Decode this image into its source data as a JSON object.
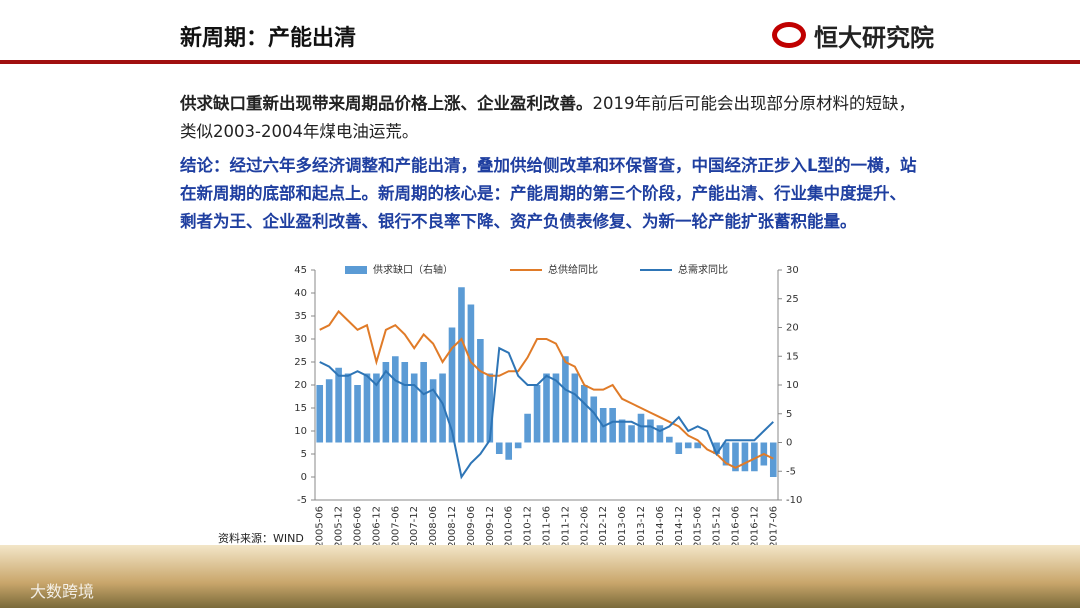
{
  "header": {
    "title": "新周期：产能出清",
    "logo": "恒大研究院"
  },
  "intro": {
    "lead": "供求缺口重新出现带来周期品价格上涨、企业盈利改善。",
    "text": "2019年前后可能会出现部分原材料的短缺，类似2003-2004年煤电油运荒。"
  },
  "conclusion": "结论：经过六年多经济调整和产能出清，叠加供给侧改革和环保督查，中国经济正步入L型的一横，站在新周期的底部和起点上。新周期的核心是：产能周期的第三个阶段，产能出清、行业集中度提升、剩者为王、企业盈利改善、银行不良率下降、资产负债表修复、为新一轮产能扩张蓄积能量。",
  "source": "资料来源：WIND",
  "watermark": "大数跨境",
  "chart_data": {
    "type": "bar-line",
    "categories": [
      "2005-06",
      null,
      "2005-12",
      null,
      "2006-06",
      null,
      "2006-12",
      null,
      "2007-06",
      null,
      "2007-12",
      null,
      "2008-06",
      null,
      "2008-12",
      null,
      "2009-06",
      null,
      "2009-12",
      null,
      "2010-06",
      null,
      "2010-12",
      null,
      "2011-06",
      null,
      "2011-12",
      null,
      "2012-06",
      null,
      "2012-12",
      null,
      "2013-06",
      null,
      "2013-12",
      null,
      "2014-06",
      null,
      "2014-12",
      null,
      "2015-06",
      null,
      "2015-12",
      null,
      "2016-06",
      null,
      "2016-12",
      null,
      "2017-06"
    ],
    "series": [
      {
        "name": "供求缺口（右轴）",
        "kind": "bar",
        "axis": "y2",
        "color": "#5b9bd5",
        "values": [
          10,
          11,
          13,
          12,
          10,
          12,
          12,
          14,
          15,
          14,
          12,
          14,
          11,
          12,
          20,
          27,
          24,
          18,
          12,
          -2,
          -3,
          -1,
          5,
          10,
          12,
          12,
          15,
          12,
          10,
          8,
          6,
          6,
          4,
          3,
          5,
          4,
          3,
          1,
          -2,
          -1,
          -1,
          0,
          -2,
          -4,
          -5,
          -5,
          -5,
          -4,
          -6
        ]
      },
      {
        "name": "总供给同比",
        "kind": "line",
        "color": "#e07b28",
        "values": [
          32,
          33,
          36,
          34,
          32,
          33,
          25,
          32,
          33,
          31,
          28,
          31,
          29,
          25,
          28,
          30,
          25,
          23,
          22,
          22,
          23,
          23,
          26,
          30,
          30,
          29,
          25,
          24,
          20,
          19,
          19,
          20,
          17,
          16,
          15,
          14,
          13,
          12,
          11,
          9,
          8,
          6,
          5,
          3,
          2,
          3,
          4,
          5,
          4
        ]
      },
      {
        "name": "总需求同比",
        "kind": "line",
        "color": "#2e75b6",
        "values": [
          25,
          24,
          22,
          22,
          23,
          22,
          20,
          23,
          21,
          20,
          20,
          18,
          19,
          16,
          10,
          0,
          3,
          5,
          8,
          28,
          27,
          22,
          20,
          20,
          22,
          21,
          19,
          18,
          16,
          14,
          11,
          12,
          12,
          12,
          11,
          11,
          10,
          11,
          13,
          10,
          11,
          10,
          5,
          8,
          8,
          8,
          8,
          10,
          12
        ]
      }
    ],
    "ylim": [
      -5,
      45
    ],
    "yticks": [
      -5,
      0,
      5,
      10,
      15,
      20,
      25,
      30,
      35,
      40,
      45
    ],
    "y2lim": [
      -10,
      30
    ],
    "y2ticks": [
      -10,
      -5,
      0,
      5,
      10,
      15,
      20,
      25,
      30
    ]
  }
}
